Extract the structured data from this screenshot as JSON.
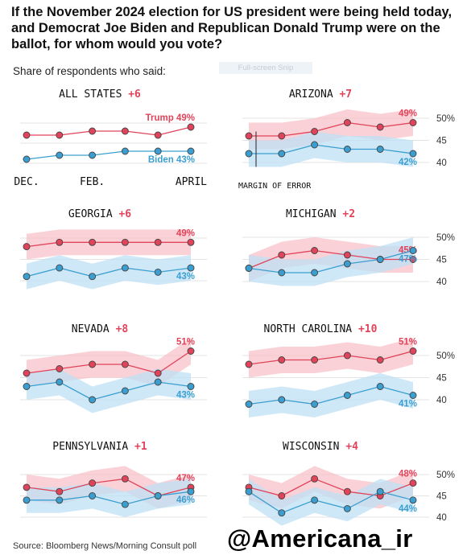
{
  "title": "If the November 2024 election for US president were being held today, and Democrat Joe Biden and Republican Donald Trump were on the ballot, for whom would you vote?",
  "subtitle": "Share of respondents who said:",
  "ghost_text": "Full-screen Snip",
  "source": "Source: Bloomberg News/Morning Consult poll",
  "watermark": "@Americana_ir",
  "colors": {
    "trump": "#e0435a",
    "biden": "#3a9fd0",
    "trump_band": "#f8c2c8",
    "biden_band": "#bfe0f4"
  },
  "chart_data": [
    {
      "type": "line",
      "state": "ALL STATES",
      "margin_label": "+6",
      "x": [
        "DEC.",
        "",
        "FEB.",
        "",
        "",
        "APRIL"
      ],
      "ylim": [
        37,
        52
      ],
      "yticks": [
        "50%",
        "45",
        "40"
      ],
      "series": [
        {
          "name": "Trump",
          "values": [
            47,
            47,
            48,
            48,
            47,
            49
          ],
          "end_label": "Trump 49%"
        },
        {
          "name": "Biden",
          "values": [
            41,
            42,
            42,
            43,
            43,
            43
          ],
          "end_label": "Biden 43%"
        }
      ],
      "error_band": false
    },
    {
      "type": "line",
      "state": "ARIZONA",
      "margin_label": "+7",
      "ylim": [
        37,
        52
      ],
      "yticks": [
        "50%",
        "45",
        "40"
      ],
      "annotation": "MARGIN OF ERROR",
      "series": [
        {
          "name": "Trump",
          "values": [
            46,
            46,
            47,
            49,
            48,
            49
          ],
          "end_label": "49%"
        },
        {
          "name": "Biden",
          "values": [
            42,
            42,
            44,
            43,
            43,
            42
          ],
          "end_label": "42%"
        }
      ],
      "error_band": true
    },
    {
      "type": "line",
      "state": "GEORGIA",
      "margin_label": "+6",
      "ylim": [
        37,
        52
      ],
      "yticks": [
        "50%",
        "45",
        "40"
      ],
      "series": [
        {
          "name": "Trump",
          "values": [
            48,
            49,
            49,
            49,
            49,
            49
          ],
          "end_label": "49%"
        },
        {
          "name": "Biden",
          "values": [
            41,
            43,
            41,
            43,
            42,
            43
          ],
          "end_label": "43%"
        }
      ],
      "error_band": true
    },
    {
      "type": "line",
      "state": "MICHIGAN",
      "margin_label": "+2",
      "ylim": [
        37,
        52
      ],
      "yticks": [
        "50%",
        "45",
        "40"
      ],
      "series": [
        {
          "name": "Trump",
          "values": [
            43,
            46,
            47,
            46,
            45,
            45
          ],
          "end_label": "45%"
        },
        {
          "name": "Biden",
          "values": [
            43,
            42,
            42,
            44,
            45,
            47
          ],
          "end_label": "47%"
        }
      ],
      "error_band": true
    },
    {
      "type": "line",
      "state": "NEVADA",
      "margin_label": "+8",
      "ylim": [
        37,
        52
      ],
      "yticks": [
        "50%",
        "45",
        "40"
      ],
      "series": [
        {
          "name": "Trump",
          "values": [
            46,
            47,
            48,
            48,
            46,
            51
          ],
          "end_label": "51%"
        },
        {
          "name": "Biden",
          "values": [
            43,
            44,
            40,
            42,
            44,
            43
          ],
          "end_label": "43%"
        }
      ],
      "error_band": true
    },
    {
      "type": "line",
      "state": "NORTH CAROLINA",
      "margin_label": "+10",
      "ylim": [
        37,
        52
      ],
      "yticks": [
        "50%",
        "45",
        "40"
      ],
      "series": [
        {
          "name": "Trump",
          "values": [
            48,
            49,
            49,
            50,
            49,
            51
          ],
          "end_label": "51%"
        },
        {
          "name": "Biden",
          "values": [
            39,
            40,
            39,
            41,
            43,
            41
          ],
          "end_label": "41%"
        }
      ],
      "error_band": true
    },
    {
      "type": "line",
      "state": "PENNSYLVANIA",
      "margin_label": "+1",
      "ylim": [
        37,
        52
      ],
      "yticks": [
        "50%",
        "45",
        "40"
      ],
      "series": [
        {
          "name": "Trump",
          "values": [
            47,
            46,
            48,
            49,
            45,
            47
          ],
          "end_label": "47%"
        },
        {
          "name": "Biden",
          "values": [
            44,
            44,
            45,
            43,
            45,
            46
          ],
          "end_label": "46%"
        }
      ],
      "error_band": true
    },
    {
      "type": "line",
      "state": "WISCONSIN",
      "margin_label": "+4",
      "ylim": [
        37,
        52
      ],
      "yticks": [
        "50%",
        "45",
        "40"
      ],
      "series": [
        {
          "name": "Trump",
          "values": [
            47,
            45,
            49,
            46,
            45,
            48
          ],
          "end_label": "48%"
        },
        {
          "name": "Biden",
          "values": [
            46,
            41,
            44,
            42,
            46,
            44
          ],
          "end_label": "44%"
        }
      ],
      "error_band": true
    }
  ]
}
